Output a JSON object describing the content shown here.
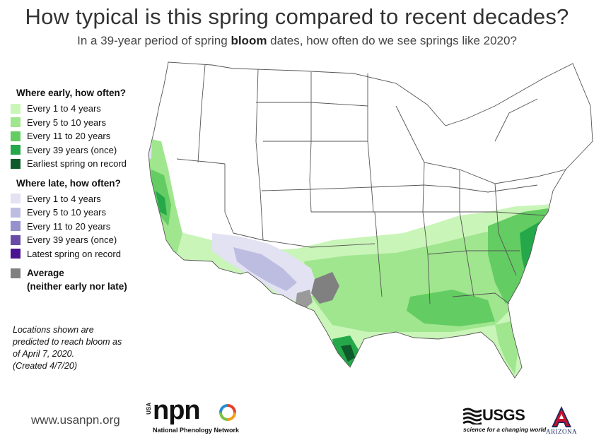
{
  "title": "How typical is this spring compared to recent decades?",
  "subtitle": {
    "before": "In a 39-year period of spring ",
    "bold": "bloom",
    "after": " dates, how often do we see springs like 2020?"
  },
  "legend": {
    "early_title": "Where early, how often?",
    "early": [
      {
        "label": "Every 1 to 4 years",
        "color": "#c9f5b8"
      },
      {
        "label": "Every 5 to 10 years",
        "color": "#9fe68e"
      },
      {
        "label": "Every 11 to 20 years",
        "color": "#63cc62"
      },
      {
        "label": "Every 39 years (once)",
        "color": "#25a84a"
      },
      {
        "label": "Earliest spring on record",
        "color": "#0f5a2a"
      }
    ],
    "late_title": "Where late, how often?",
    "late": [
      {
        "label": "Every 1 to 4 years",
        "color": "#e2e2f2"
      },
      {
        "label": "Every 5 to 10 years",
        "color": "#bdbde2"
      },
      {
        "label": "Every 11 to 20 years",
        "color": "#9692cc"
      },
      {
        "label": "Every 39 years (once)",
        "color": "#6a4ca8"
      },
      {
        "label": "Latest spring on record",
        "color": "#4a1190"
      }
    ],
    "average_label_1": "Average",
    "average_label_2": "(neither early nor late)",
    "average_color": "#808080"
  },
  "note": {
    "line1": "Locations shown are",
    "line2": "predicted to reach bloom as",
    "line3": "of April 7, 2020.",
    "line4": "(Created 4/7/20)"
  },
  "footer": {
    "url": "www.usanpn.org",
    "npn_usa": "USA",
    "npn_word": "npn",
    "npn_sub": "National Phenology Network",
    "usgs_word": "USGS",
    "usgs_tag": "science for a changing world",
    "az_word": "ARIZONA"
  },
  "colors": {
    "state_fill": "#ffffff",
    "state_border": "#555555"
  }
}
